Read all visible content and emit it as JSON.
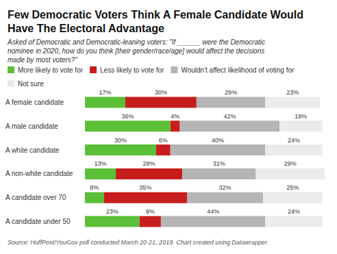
{
  "chart_data": {
    "type": "bar",
    "orientation": "horizontal",
    "stacked": true,
    "data_labels": true,
    "tick_labels": "y",
    "grid": false,
    "legend": "top-left",
    "title": "Few Democratic Voters Think A Female Candidate Would Have The Electoral Advantage",
    "subtitle": "Asked of Democratic and Democratic-leaning voters: \"If ______ were the Democratic nominee in 2020, how do you think [their gender/race/age] would affect the decisions made by most voters?\"",
    "source": "Source: HuffPost/YouGov poll conducted March 20-21, 2019. Chart created using Datawrapper.",
    "categories": [
      "A female candidate",
      "A male candidate",
      "A white candidate",
      "A non-white candidate",
      "A candidate over 70",
      "A candidate under 50"
    ],
    "xlim": [
      0,
      101
    ],
    "series": [
      {
        "name": "More likely to vote for",
        "color": "#5bbf38",
        "values": [
          17,
          36,
          30,
          13,
          8,
          23
        ],
        "value_labels": [
          "17%",
          "36%",
          "30%",
          "13%",
          "8%",
          "23%"
        ]
      },
      {
        "name": "Less likely to vote for",
        "color": "#c71e1d",
        "values": [
          30,
          4,
          6,
          28,
          35,
          9
        ],
        "value_labels": [
          "30%",
          "4%",
          "6%",
          "28%",
          "35%",
          "9%"
        ]
      },
      {
        "name": "Wouldn't affect likelihood of voting for",
        "color": "#b5b5b5",
        "values": [
          29,
          42,
          40,
          31,
          32,
          44
        ],
        "value_labels": [
          "29%",
          "42%",
          "40%",
          "31%",
          "32%",
          "44%"
        ]
      },
      {
        "name": "Not sure",
        "color": "#ebebeb",
        "values": [
          23,
          18,
          24,
          29,
          25,
          24
        ],
        "value_labels": [
          "23%",
          "18%",
          "24%",
          "29%",
          "25%",
          "24%"
        ]
      }
    ]
  }
}
